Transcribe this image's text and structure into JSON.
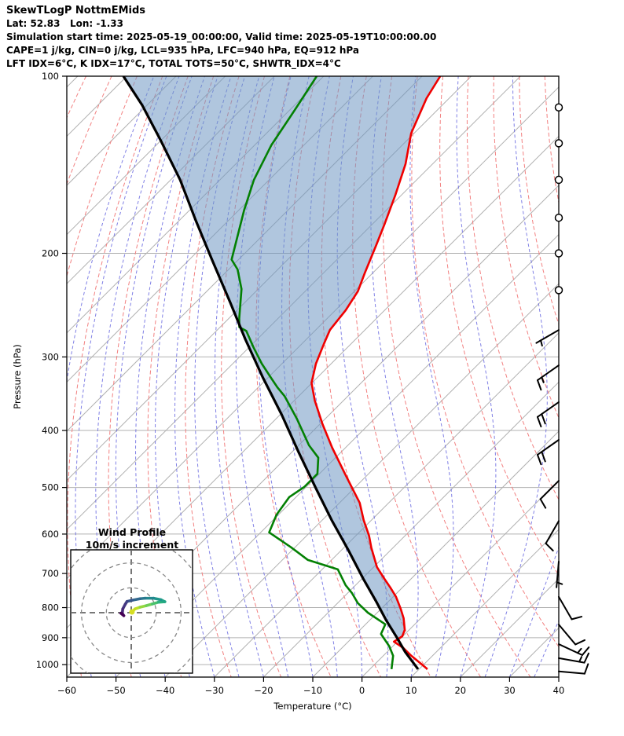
{
  "header": {
    "title": "SkewTLogP NottmEMids",
    "location": "Lat: 52.83   Lon: -1.33",
    "times": "Simulation start time: 2025-05-19_00:00:00, Valid time: 2025-05-19T10:00:00.00",
    "indices1": "CAPE=1 j/kg, CIN=0 j/kg, LCL=935 hPa, LFC=940 hPa, EQ=912 hPa",
    "indices2": "LFT IDX=6°C, K IDX=17°C, TOTAL TOTS=50°C, SHWTR_IDX=4°C"
  },
  "axes": {
    "x_label": "Temperature (°C)",
    "y_label": "Pressure (hPa)",
    "x_ticks": [
      -60,
      -50,
      -40,
      -30,
      -20,
      -10,
      0,
      10,
      20,
      30,
      40
    ],
    "x_tick_labels": [
      "−60",
      "−50",
      "−40",
      "−30",
      "−20",
      "−10",
      "0",
      "10",
      "20",
      "30",
      "40"
    ],
    "y_ticks": [
      100,
      200,
      300,
      400,
      500,
      600,
      700,
      800,
      900,
      1000
    ],
    "x_range": [
      -60,
      40
    ],
    "p_range": [
      100,
      1050
    ]
  },
  "colors": {
    "temperature": "#f00000",
    "dewpoint": "#038003",
    "parcel": "#000000",
    "cape_fill": "rgba(112,152,195,0.55)",
    "isotherm": "#b0b0b0",
    "pressure_line": "#b0b0b0",
    "dry_adiabat": "#f28080",
    "moist_adiabat": "#6a6ae0",
    "spine": "#000000",
    "barb": "#000000",
    "hodo_ring": "#888888",
    "hodo_cross": "#666666",
    "hodo_start_dot": "#d6de23"
  },
  "chart_data": {
    "type": "skewt_logp",
    "pressure_unit": "hPa",
    "temperature_unit": "°C",
    "temperature_profile": [
      [
        100,
        -106.3
      ],
      [
        109,
        -104.6
      ],
      [
        125,
        -100.6
      ],
      [
        141,
        -95.5
      ],
      [
        159,
        -91.3
      ],
      [
        178,
        -87.6
      ],
      [
        194,
        -84.9
      ],
      [
        216,
        -81.6
      ],
      [
        232,
        -79.3
      ],
      [
        250,
        -77.9
      ],
      [
        270,
        -77.1
      ],
      [
        285,
        -75.5
      ],
      [
        308,
        -73.1
      ],
      [
        332,
        -70.1
      ],
      [
        356,
        -65.8
      ],
      [
        390,
        -59.5
      ],
      [
        428,
        -52.7
      ],
      [
        477,
        -44.3
      ],
      [
        531,
        -35.9
      ],
      [
        568,
        -31.6
      ],
      [
        604,
        -27.3
      ],
      [
        633,
        -24.4
      ],
      [
        683,
        -19.3
      ],
      [
        715,
        -15.4
      ],
      [
        740,
        -12.4
      ],
      [
        767,
        -9.4
      ],
      [
        804,
        -6.0
      ],
      [
        834,
        -3.5
      ],
      [
        873,
        -0.9
      ],
      [
        895,
        -0.1
      ],
      [
        914,
        -0.7
      ],
      [
        937,
        2.5
      ],
      [
        966,
        5.7
      ],
      [
        996,
        9.2
      ],
      [
        1018,
        11.7
      ]
    ],
    "dewpoint_profile": [
      [
        100,
        -131.4
      ],
      [
        114,
        -129.0
      ],
      [
        131,
        -126.6
      ],
      [
        150,
        -123.1
      ],
      [
        169,
        -118.9
      ],
      [
        205,
        -111.4
      ],
      [
        213,
        -108.2
      ],
      [
        230,
        -103.4
      ],
      [
        258,
        -97.9
      ],
      [
        267,
        -96.1
      ],
      [
        271,
        -93.9
      ],
      [
        289,
        -89.1
      ],
      [
        308,
        -84.1
      ],
      [
        325,
        -79.5
      ],
      [
        338,
        -76.1
      ],
      [
        350,
        -72.8
      ],
      [
        382,
        -65.8
      ],
      [
        424,
        -57.9
      ],
      [
        445,
        -53.5
      ],
      [
        474,
        -50.4
      ],
      [
        499,
        -50.4
      ],
      [
        519,
        -51.4
      ],
      [
        556,
        -50.4
      ],
      [
        596,
        -48.3
      ],
      [
        632,
        -40.8
      ],
      [
        664,
        -34.8
      ],
      [
        689,
        -26.8
      ],
      [
        733,
        -22.0
      ],
      [
        756,
        -19.1
      ],
      [
        786,
        -15.9
      ],
      [
        816,
        -11.9
      ],
      [
        854,
        -6.0
      ],
      [
        887,
        -4.9
      ],
      [
        931,
        -0.7
      ],
      [
        966,
        2.0
      ],
      [
        1018,
        4.4
      ]
    ],
    "parcel_profile": [
      [
        100,
        -170.7
      ],
      [
        112,
        -161.0
      ],
      [
        129,
        -149.8
      ],
      [
        150,
        -138.1
      ],
      [
        176,
        -126.6
      ],
      [
        205,
        -115.4
      ],
      [
        242,
        -103.1
      ],
      [
        280,
        -92.4
      ],
      [
        325,
        -81.1
      ],
      [
        376,
        -69.7
      ],
      [
        435,
        -58.7
      ],
      [
        502,
        -47.7
      ],
      [
        568,
        -38.1
      ],
      [
        638,
        -28.7
      ],
      [
        715,
        -19.7
      ],
      [
        779,
        -12.7
      ],
      [
        842,
        -6.5
      ],
      [
        900,
        -0.9
      ],
      [
        952,
        3.7
      ],
      [
        1018,
        9.8
      ]
    ],
    "cape_shade": {
      "parcel_max_p": 905,
      "temperature_max_p": 900
    },
    "wind_barbs": [
      {
        "p": 113,
        "spd": 0,
        "dir": 0
      },
      {
        "p": 130,
        "spd": 0,
        "dir": 0
      },
      {
        "p": 150,
        "spd": 0,
        "dir": 0
      },
      {
        "p": 174,
        "spd": 0,
        "dir": 0
      },
      {
        "p": 200,
        "spd": 0,
        "dir": 0
      },
      {
        "p": 231,
        "spd": 0,
        "dir": 0
      },
      {
        "p": 270,
        "spd": 5,
        "dir": 240
      },
      {
        "p": 310,
        "spd": 15,
        "dir": 235
      },
      {
        "p": 358,
        "spd": 20,
        "dir": 235
      },
      {
        "p": 415,
        "spd": 20,
        "dir": 235
      },
      {
        "p": 487,
        "spd": 10,
        "dir": 225
      },
      {
        "p": 570,
        "spd": 10,
        "dir": 210
      },
      {
        "p": 668,
        "spd": 5,
        "dir": 185
      },
      {
        "p": 767,
        "spd": 10,
        "dir": 150
      },
      {
        "p": 855,
        "spd": 10,
        "dir": 140
      },
      {
        "p": 923,
        "spd": 15,
        "dir": 115
      },
      {
        "p": 975,
        "spd": 15,
        "dir": 100
      },
      {
        "p": 1027,
        "spd": 10,
        "dir": 95
      }
    ],
    "background": {
      "isotherm_start": -180,
      "isotherm_end": 40,
      "isotherm_step": 10,
      "dry_adiabat_start": -140,
      "dry_adiabat_end": 160,
      "dry_adiabat_step": 10,
      "moist_adiabat_start": -60,
      "moist_adiabat_end": 40,
      "moist_adiabat_step": 5
    },
    "hodograph": {
      "title_line1": "Wind Profile",
      "title_line2": "10m/s increment",
      "unit": "m/s",
      "rings": [
        10,
        20,
        30,
        40
      ],
      "trace_uv": [
        [
          0.3,
          0.3
        ],
        [
          1.5,
          1.5
        ],
        [
          3.5,
          2.2
        ],
        [
          6.0,
          2.8
        ],
        [
          8.5,
          3.5
        ],
        [
          10.9,
          4.2
        ],
        [
          13.5,
          4.4
        ],
        [
          11.9,
          5.2
        ],
        [
          9.0,
          5.8
        ],
        [
          5.5,
          5.8
        ],
        [
          3.5,
          5.6
        ],
        [
          0.4,
          5.0
        ],
        [
          -1.7,
          4.5
        ],
        [
          -2.4,
          3.4
        ],
        [
          -3.4,
          1.5
        ],
        [
          -3.6,
          -0.3
        ],
        [
          -3.0,
          -1.2
        ],
        [
          -4.2,
          -0.2
        ]
      ],
      "segment_colors": [
        "#e2e418",
        "#c2df23",
        "#95d840",
        "#6ece58",
        "#4ac16d",
        "#2db27d",
        "#21a585",
        "#1f978b",
        "#23888e",
        "#2a788e",
        "#31688e",
        "#39568c",
        "#414287",
        "#453781",
        "#472a7a",
        "#46156e",
        "#440154"
      ]
    }
  }
}
